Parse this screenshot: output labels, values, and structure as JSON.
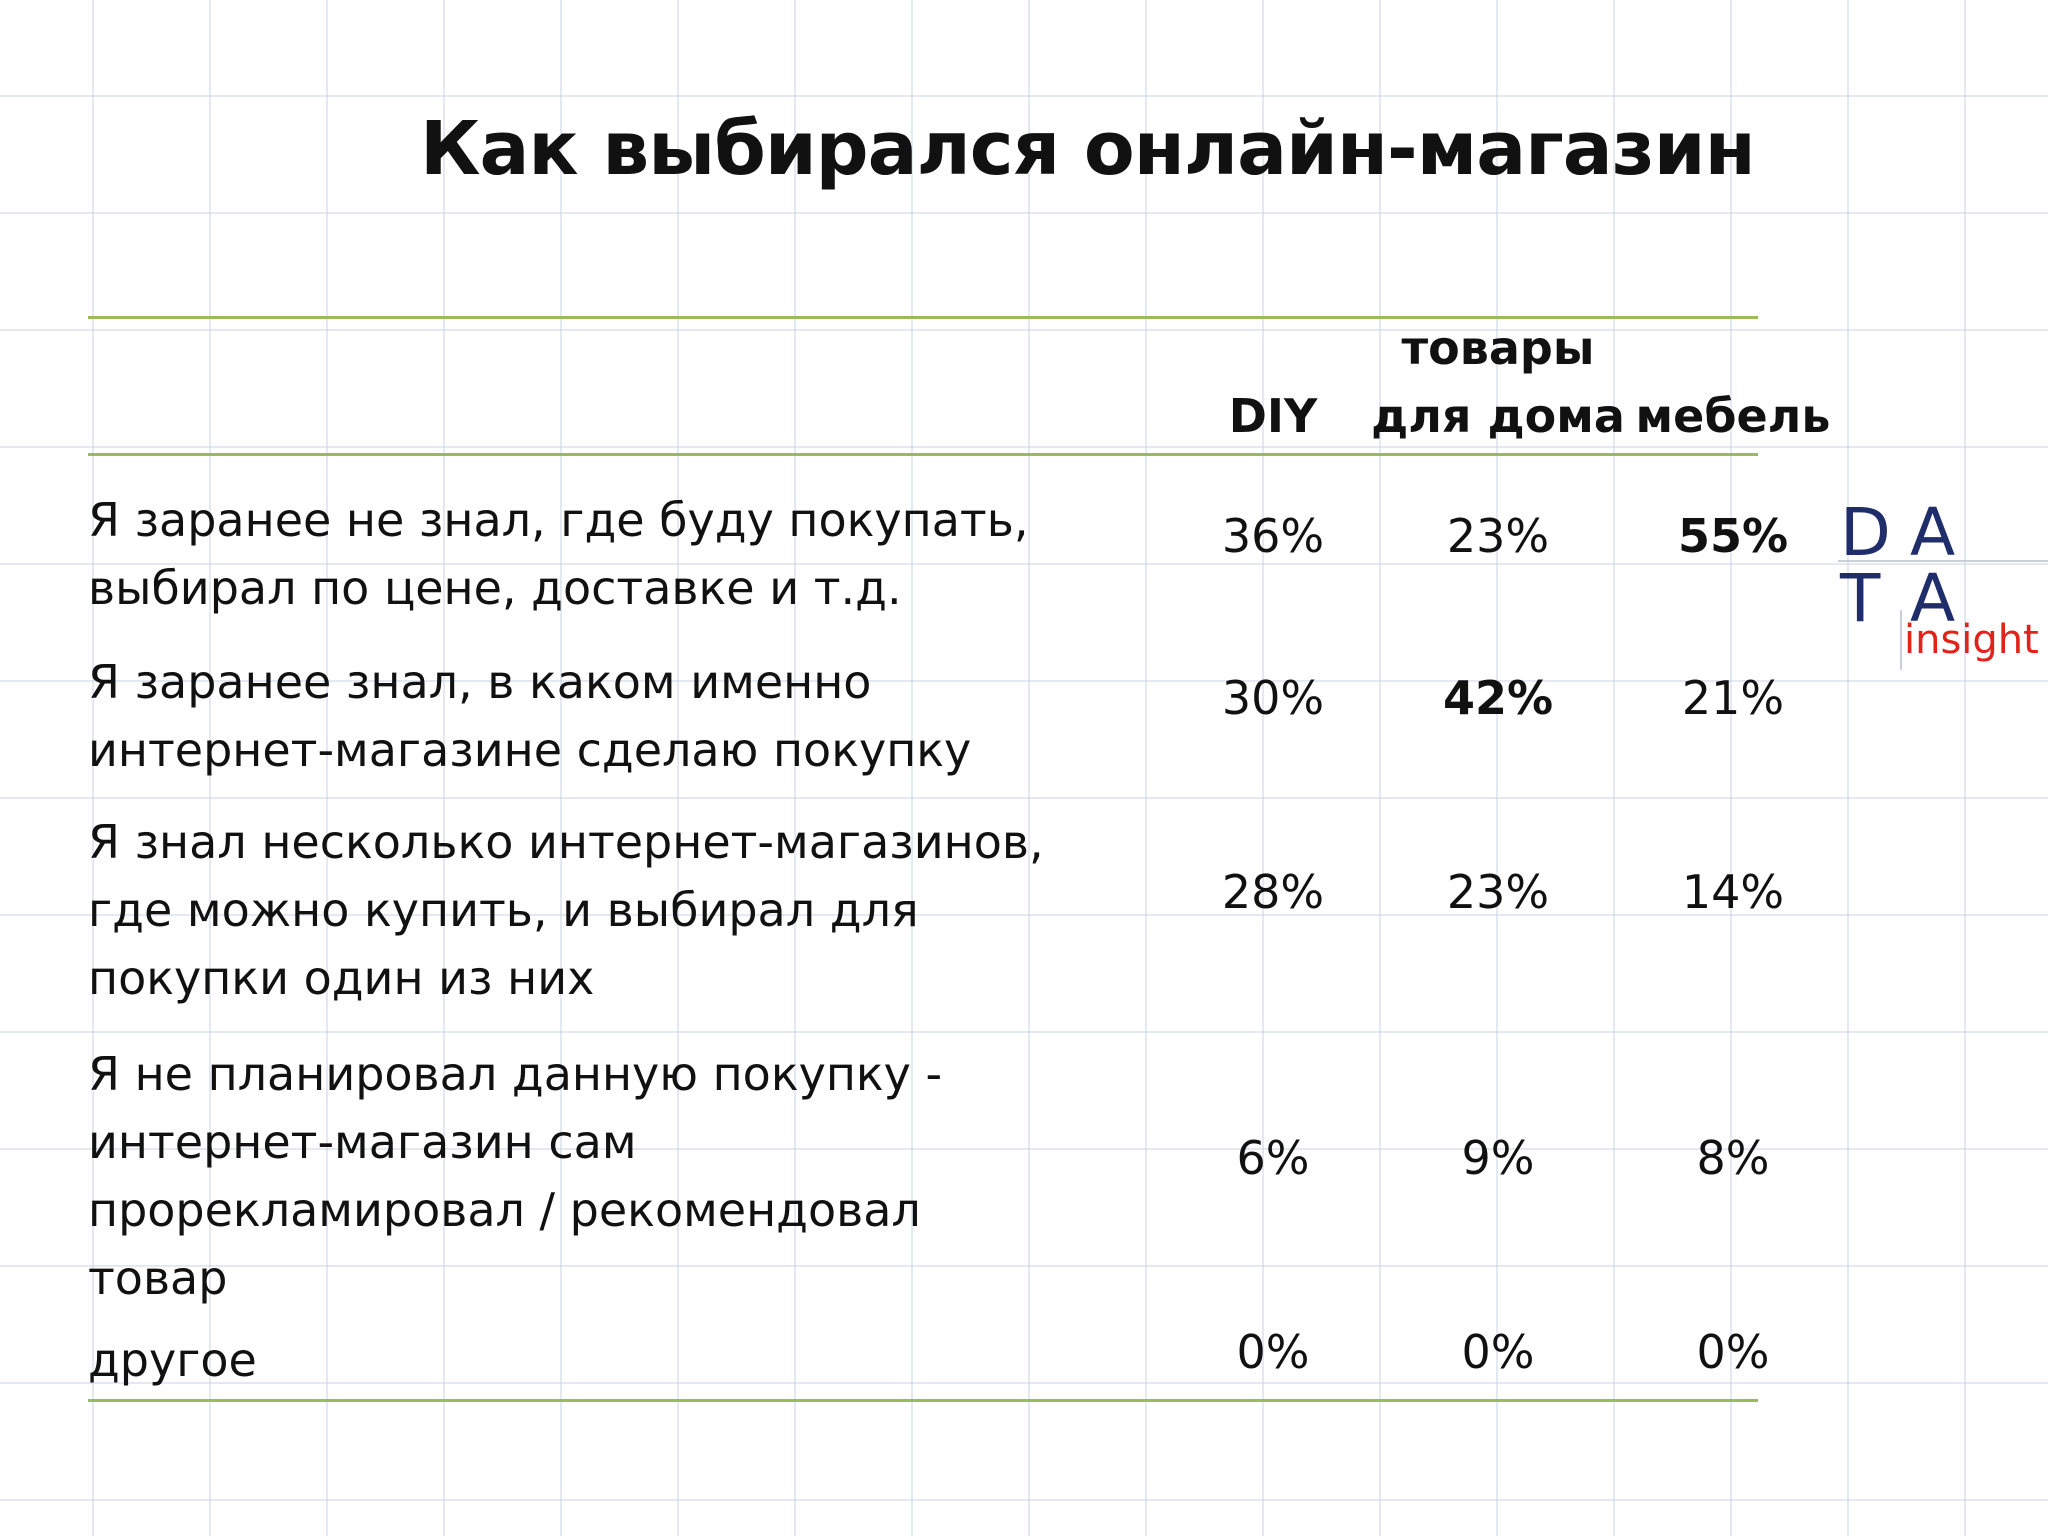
{
  "title": "Как выбирался онлайн-магазин",
  "columns": [
    {
      "lines": [
        "DIY"
      ]
    },
    {
      "lines": [
        "товары",
        "для дома"
      ]
    },
    {
      "lines": [
        "мебель"
      ]
    }
  ],
  "rows": [
    {
      "label": "Я заранее не знал, где буду покупать,\nвыбирал по цене, доставке и т.д.",
      "values": [
        "36%",
        "23%",
        "55%"
      ],
      "bold": [
        false,
        false,
        true
      ]
    },
    {
      "label": "Я заранее знал, в каком именно\nинтернет-магазине сделаю покупку",
      "values": [
        "30%",
        "42%",
        "21%"
      ],
      "bold": [
        false,
        true,
        false
      ]
    },
    {
      "label": "Я знал несколько интернет-магазинов,\nгде можно купить, и выбирал для\nпокупки один из них",
      "values": [
        "28%",
        "23%",
        "14%"
      ],
      "bold": [
        false,
        false,
        false
      ]
    },
    {
      "label": "Я не планировал данную покупку -\nинтернет-магазин сам\nпрорекламировал / рекомендовал\nтовар",
      "values": [
        "6%",
        "9%",
        "8%"
      ],
      "bold": [
        false,
        false,
        false
      ]
    },
    {
      "label": "другое",
      "values": [
        "0%",
        "0%",
        "0%"
      ],
      "bold": [
        false,
        false,
        false
      ]
    }
  ],
  "logo": {
    "letters": [
      "D",
      "A",
      "T",
      "A"
    ],
    "sub": "insight",
    "colors": {
      "main": "#1f2d6b",
      "accent": "#e2231a"
    }
  }
}
